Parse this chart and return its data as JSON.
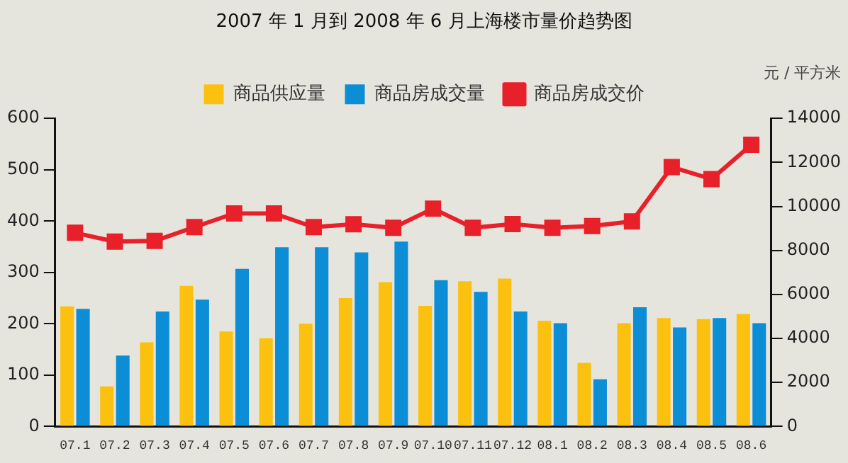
{
  "chart_data": {
    "type": "bar",
    "title": "2007 年 1 月到 2008 年 6 月上海楼市量价趋势图",
    "y2label": "元 / 平方米",
    "categories": [
      "07.1",
      "07.2",
      "07.3",
      "07.4",
      "07.5",
      "07.6",
      "07.7",
      "07.8",
      "07.9",
      "07.10",
      "07.11",
      "07.12",
      "08.1",
      "08.2",
      "08.3",
      "08.4",
      "08.5",
      "08.6"
    ],
    "series": [
      {
        "name": "商品供应量",
        "color": "#fcc10f",
        "values": [
          234,
          78,
          164,
          274,
          185,
          172,
          200,
          250,
          281,
          235,
          283,
          288,
          206,
          124,
          201,
          211,
          209,
          219
        ]
      },
      {
        "name": "商品房成交量",
        "color": "#0b8ed6",
        "values": [
          229,
          138,
          224,
          247,
          307,
          349,
          349,
          339,
          360,
          285,
          262,
          224,
          201,
          92,
          232,
          193,
          211,
          201
        ]
      },
      {
        "name": "商品房成交价",
        "color": "#e8202a",
        "type": "line",
        "axis": "y2",
        "values": [
          8800,
          8400,
          8430,
          9060,
          9680,
          9680,
          9060,
          9190,
          9030,
          9900,
          9030,
          9200,
          9030,
          9110,
          9320,
          11790,
          11240,
          12800
        ]
      }
    ],
    "ylim": [
      0,
      600
    ],
    "yticks": [
      0,
      100,
      200,
      300,
      400,
      500,
      600
    ],
    "y2lim": [
      0,
      14000
    ],
    "y2ticks": [
      0,
      2000,
      4000,
      6000,
      8000,
      10000,
      12000,
      14000
    ],
    "grid": false,
    "legend": "top",
    "marker": "square"
  }
}
